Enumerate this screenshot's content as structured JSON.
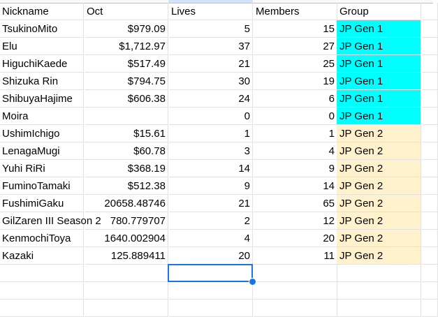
{
  "headers": [
    "Nickname",
    "Oct",
    "Lives",
    "Members",
    "Group"
  ],
  "rows": [
    [
      "TsukinoMito",
      "$979.09",
      "5",
      "15",
      "JP Gen 1"
    ],
    [
      "Elu",
      "$1,712.97",
      "37",
      "27",
      "JP Gen 1"
    ],
    [
      "HiguchiKaede",
      "$517.49",
      "21",
      "25",
      "JP Gen 1"
    ],
    [
      "Shizuka Rin",
      "$794.75",
      "30",
      "19",
      "JP Gen 1"
    ],
    [
      "ShibuyaHajime",
      "$606.38",
      "24",
      "6",
      "JP Gen 1"
    ],
    [
      "Moira",
      "",
      "0",
      "0",
      "JP Gen 1"
    ],
    [
      "UshimIchigo",
      "$15.61",
      "1",
      "1",
      "JP Gen 2"
    ],
    [
      "LenagaMugi",
      "$60.78",
      "3",
      "4",
      "JP Gen 2"
    ],
    [
      "Yuhi RiRi",
      "$368.19",
      "14",
      "9",
      "JP Gen 2"
    ],
    [
      "FuminoTamaki",
      "$512.38",
      "9",
      "14",
      "JP Gen 2"
    ],
    [
      "FushimiGaku",
      "20658.48746",
      "21",
      "65",
      "JP Gen 2"
    ],
    [
      "GilZaren III Season 2",
      "780.779707",
      "2",
      "12",
      "JP Gen 2"
    ],
    [
      "KenmochiToya",
      "1640.002904",
      "4",
      "20",
      "JP Gen 2"
    ],
    [
      "Kazaki",
      "125.889411",
      "20",
      "11",
      "JP Gen 2"
    ]
  ],
  "group_colors": {
    "JP Gen 1": "#00ffff",
    "JP Gen 2": "#fff2cc"
  },
  "selected_cell": "C16"
}
